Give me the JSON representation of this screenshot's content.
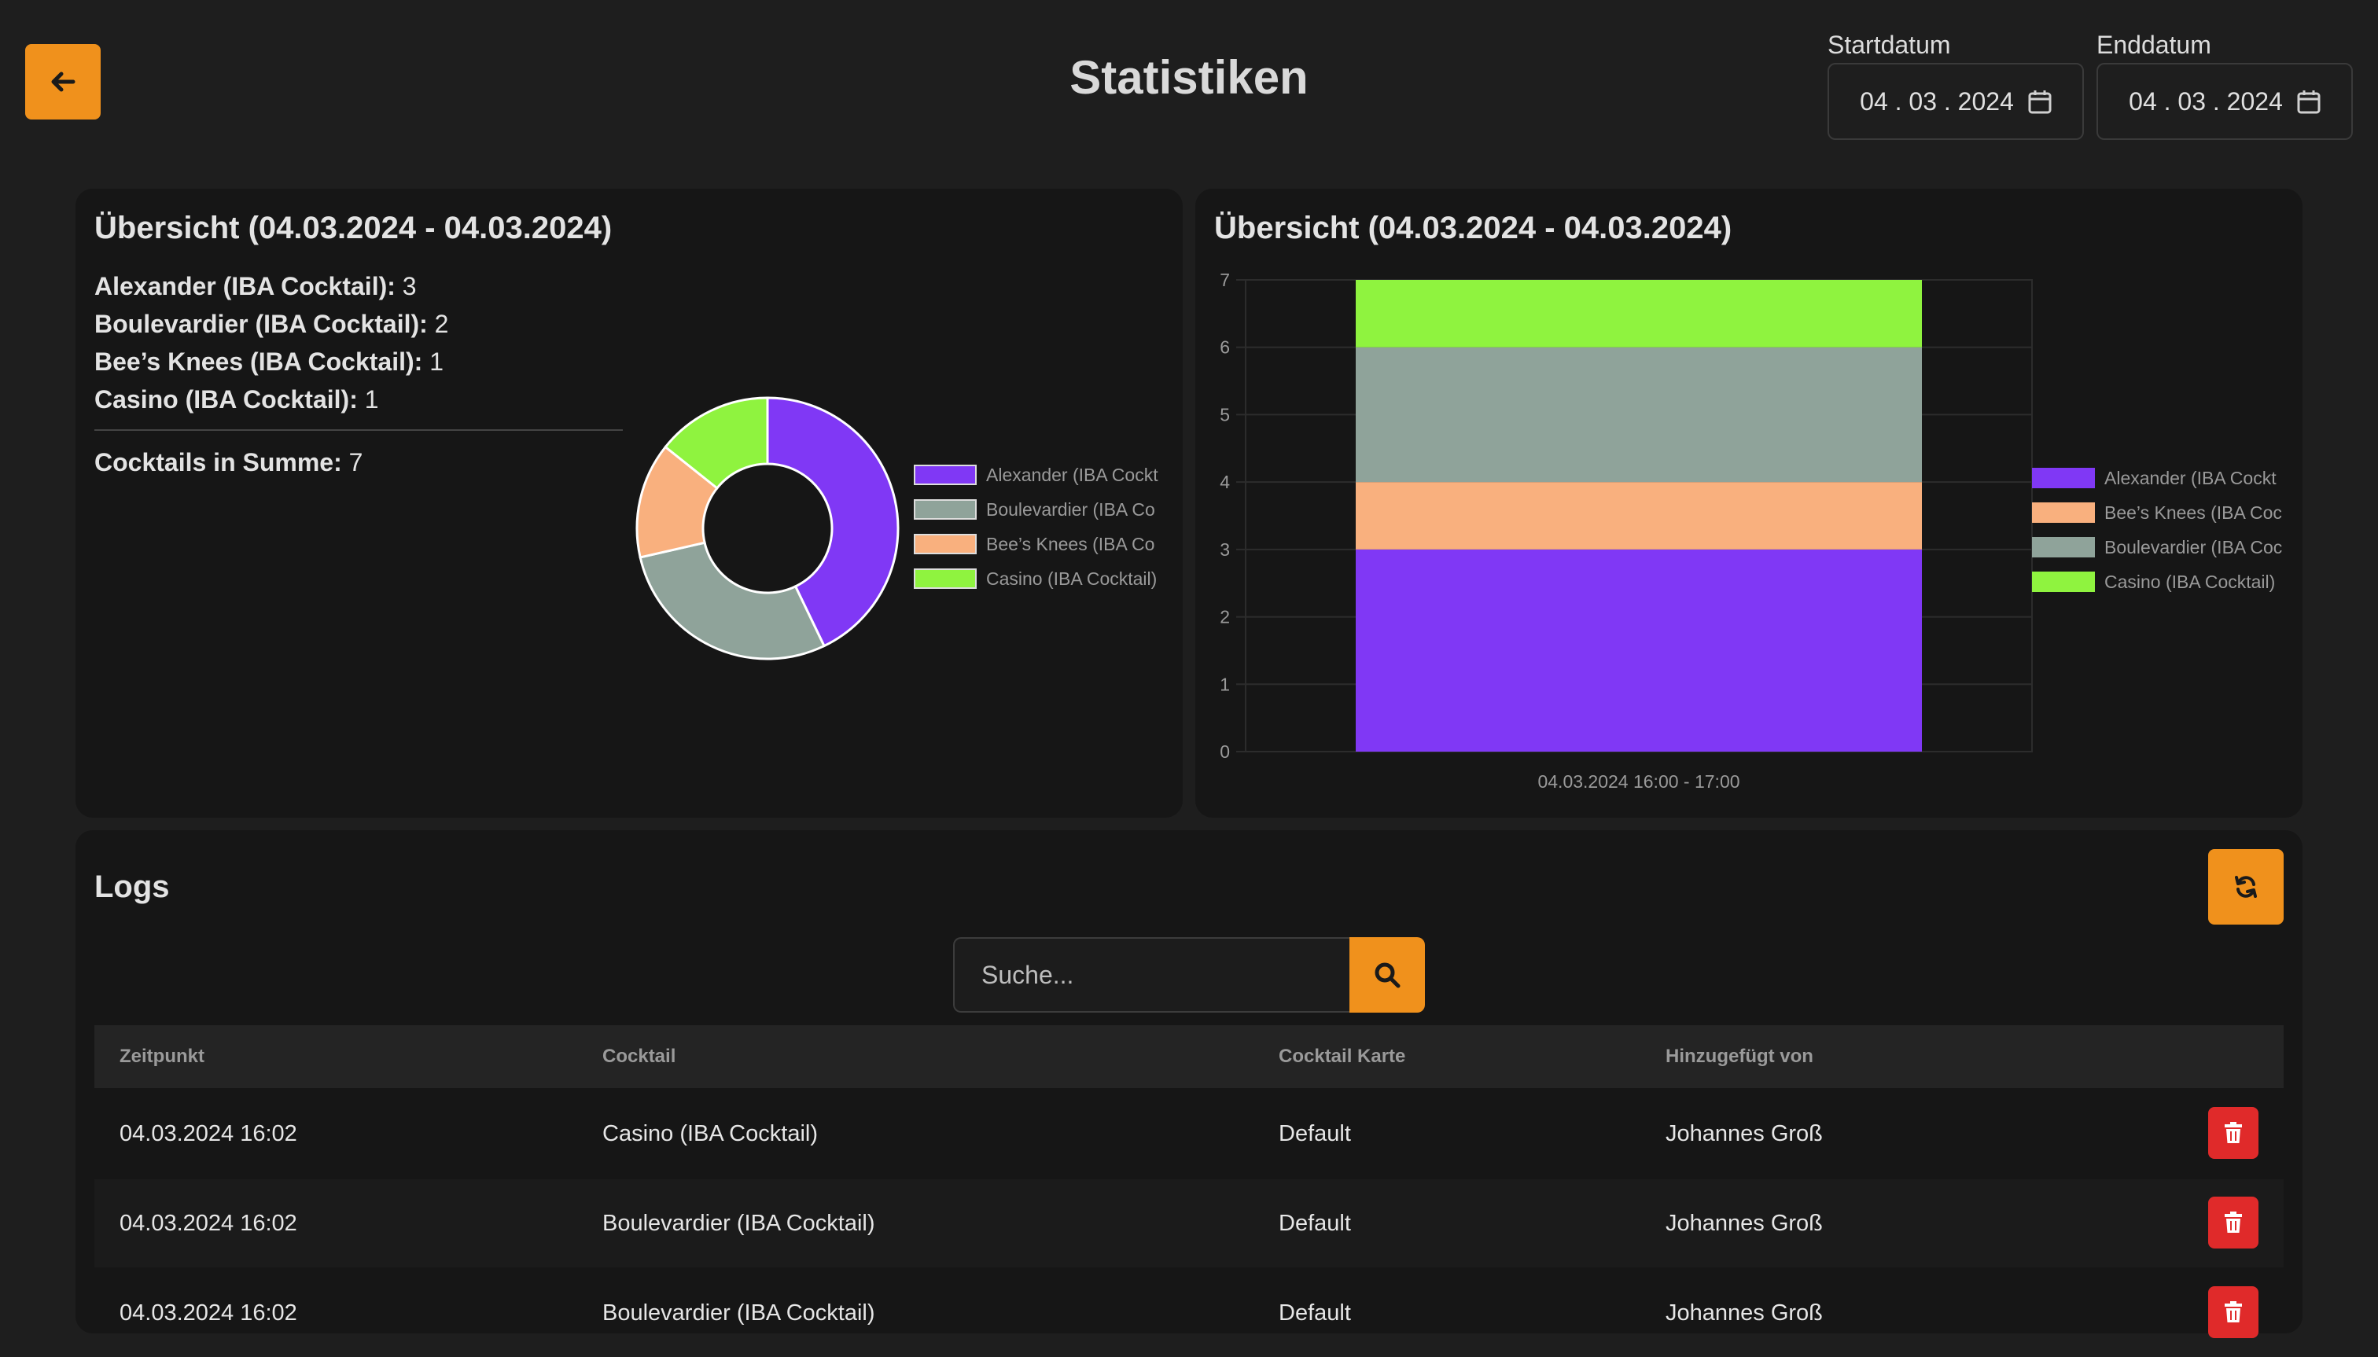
{
  "header": {
    "title": "Statistiken",
    "start_label": "Startdatum",
    "start_value": "04 . 03 . 2024",
    "end_label": "Enddatum",
    "end_value": "04 . 03 . 2024"
  },
  "overview": {
    "title": "Übersicht (04.03.2024 - 04.03.2024)",
    "items": [
      {
        "name": "Alexander (IBA Cocktail):",
        "count": "3"
      },
      {
        "name": "Boulevardier (IBA Cocktail):",
        "count": "2"
      },
      {
        "name": "Bee’s Knees (IBA Cocktail):",
        "count": "1"
      },
      {
        "name": "Casino (IBA Cocktail):",
        "count": "1"
      }
    ],
    "total_label": "Cocktails in Summe:",
    "total_value": "7"
  },
  "chart_data": [
    {
      "type": "pie",
      "donut": true,
      "categories": [
        "Alexander (IBA Cocktail)",
        "Boulevardier (IBA Cocktail)",
        "Bee’s Knees (IBA Cocktail)",
        "Casino (IBA Cocktail)"
      ],
      "legend_labels": [
        "Alexander (IBA Cockt",
        "Boulevardier (IBA Co",
        "Bee’s Knees (IBA Co",
        "Casino (IBA Cocktail)"
      ],
      "values": [
        3,
        2,
        1,
        1
      ],
      "colors": [
        "#8038f5",
        "#8fa39a",
        "#f9b07e",
        "#8ff33f"
      ],
      "legend_position": "right"
    },
    {
      "type": "bar",
      "stacked": true,
      "title": "Übersicht (04.03.2024 - 04.03.2024)",
      "categories": [
        "04.03.2024 16:00 - 17:00"
      ],
      "series": [
        {
          "name": "Alexander (IBA Cocktail)",
          "label": "Alexander (IBA Cockt",
          "values": [
            3
          ],
          "color": "#8038f5"
        },
        {
          "name": "Bee’s Knees (IBA Cocktail)",
          "label": "Bee’s Knees (IBA Coc",
          "values": [
            1
          ],
          "color": "#f9b07e"
        },
        {
          "name": "Boulevardier (IBA Cocktail)",
          "label": "Boulevardier (IBA Coc",
          "values": [
            2
          ],
          "color": "#8fa39a"
        },
        {
          "name": "Casino (IBA Cocktail)",
          "label": "Casino (IBA Cocktail)",
          "values": [
            1
          ],
          "color": "#8ff33f"
        }
      ],
      "yticks": [
        "0",
        "1",
        "2",
        "3",
        "4",
        "5",
        "6",
        "7"
      ],
      "ylim": [
        0,
        7
      ],
      "grid": true,
      "legend_position": "right"
    }
  ],
  "logs": {
    "title": "Logs",
    "search_placeholder": "Suche...",
    "columns": [
      "Zeitpunkt",
      "Cocktail",
      "Cocktail Karte",
      "Hinzugefügt von"
    ],
    "rows": [
      {
        "time": "04.03.2024 16:02",
        "cocktail": "Casino (IBA Cocktail)",
        "card": "Default",
        "by": "Johannes Groß"
      },
      {
        "time": "04.03.2024 16:02",
        "cocktail": "Boulevardier (IBA Cocktail)",
        "card": "Default",
        "by": "Johannes Groß"
      },
      {
        "time": "04.03.2024 16:02",
        "cocktail": "Boulevardier (IBA Cocktail)",
        "card": "Default",
        "by": "Johannes Groß"
      }
    ]
  },
  "colors": {
    "accent": "#f0911c",
    "danger": "#e02a2a",
    "background": "#1e1e1e",
    "card": "#161616"
  }
}
